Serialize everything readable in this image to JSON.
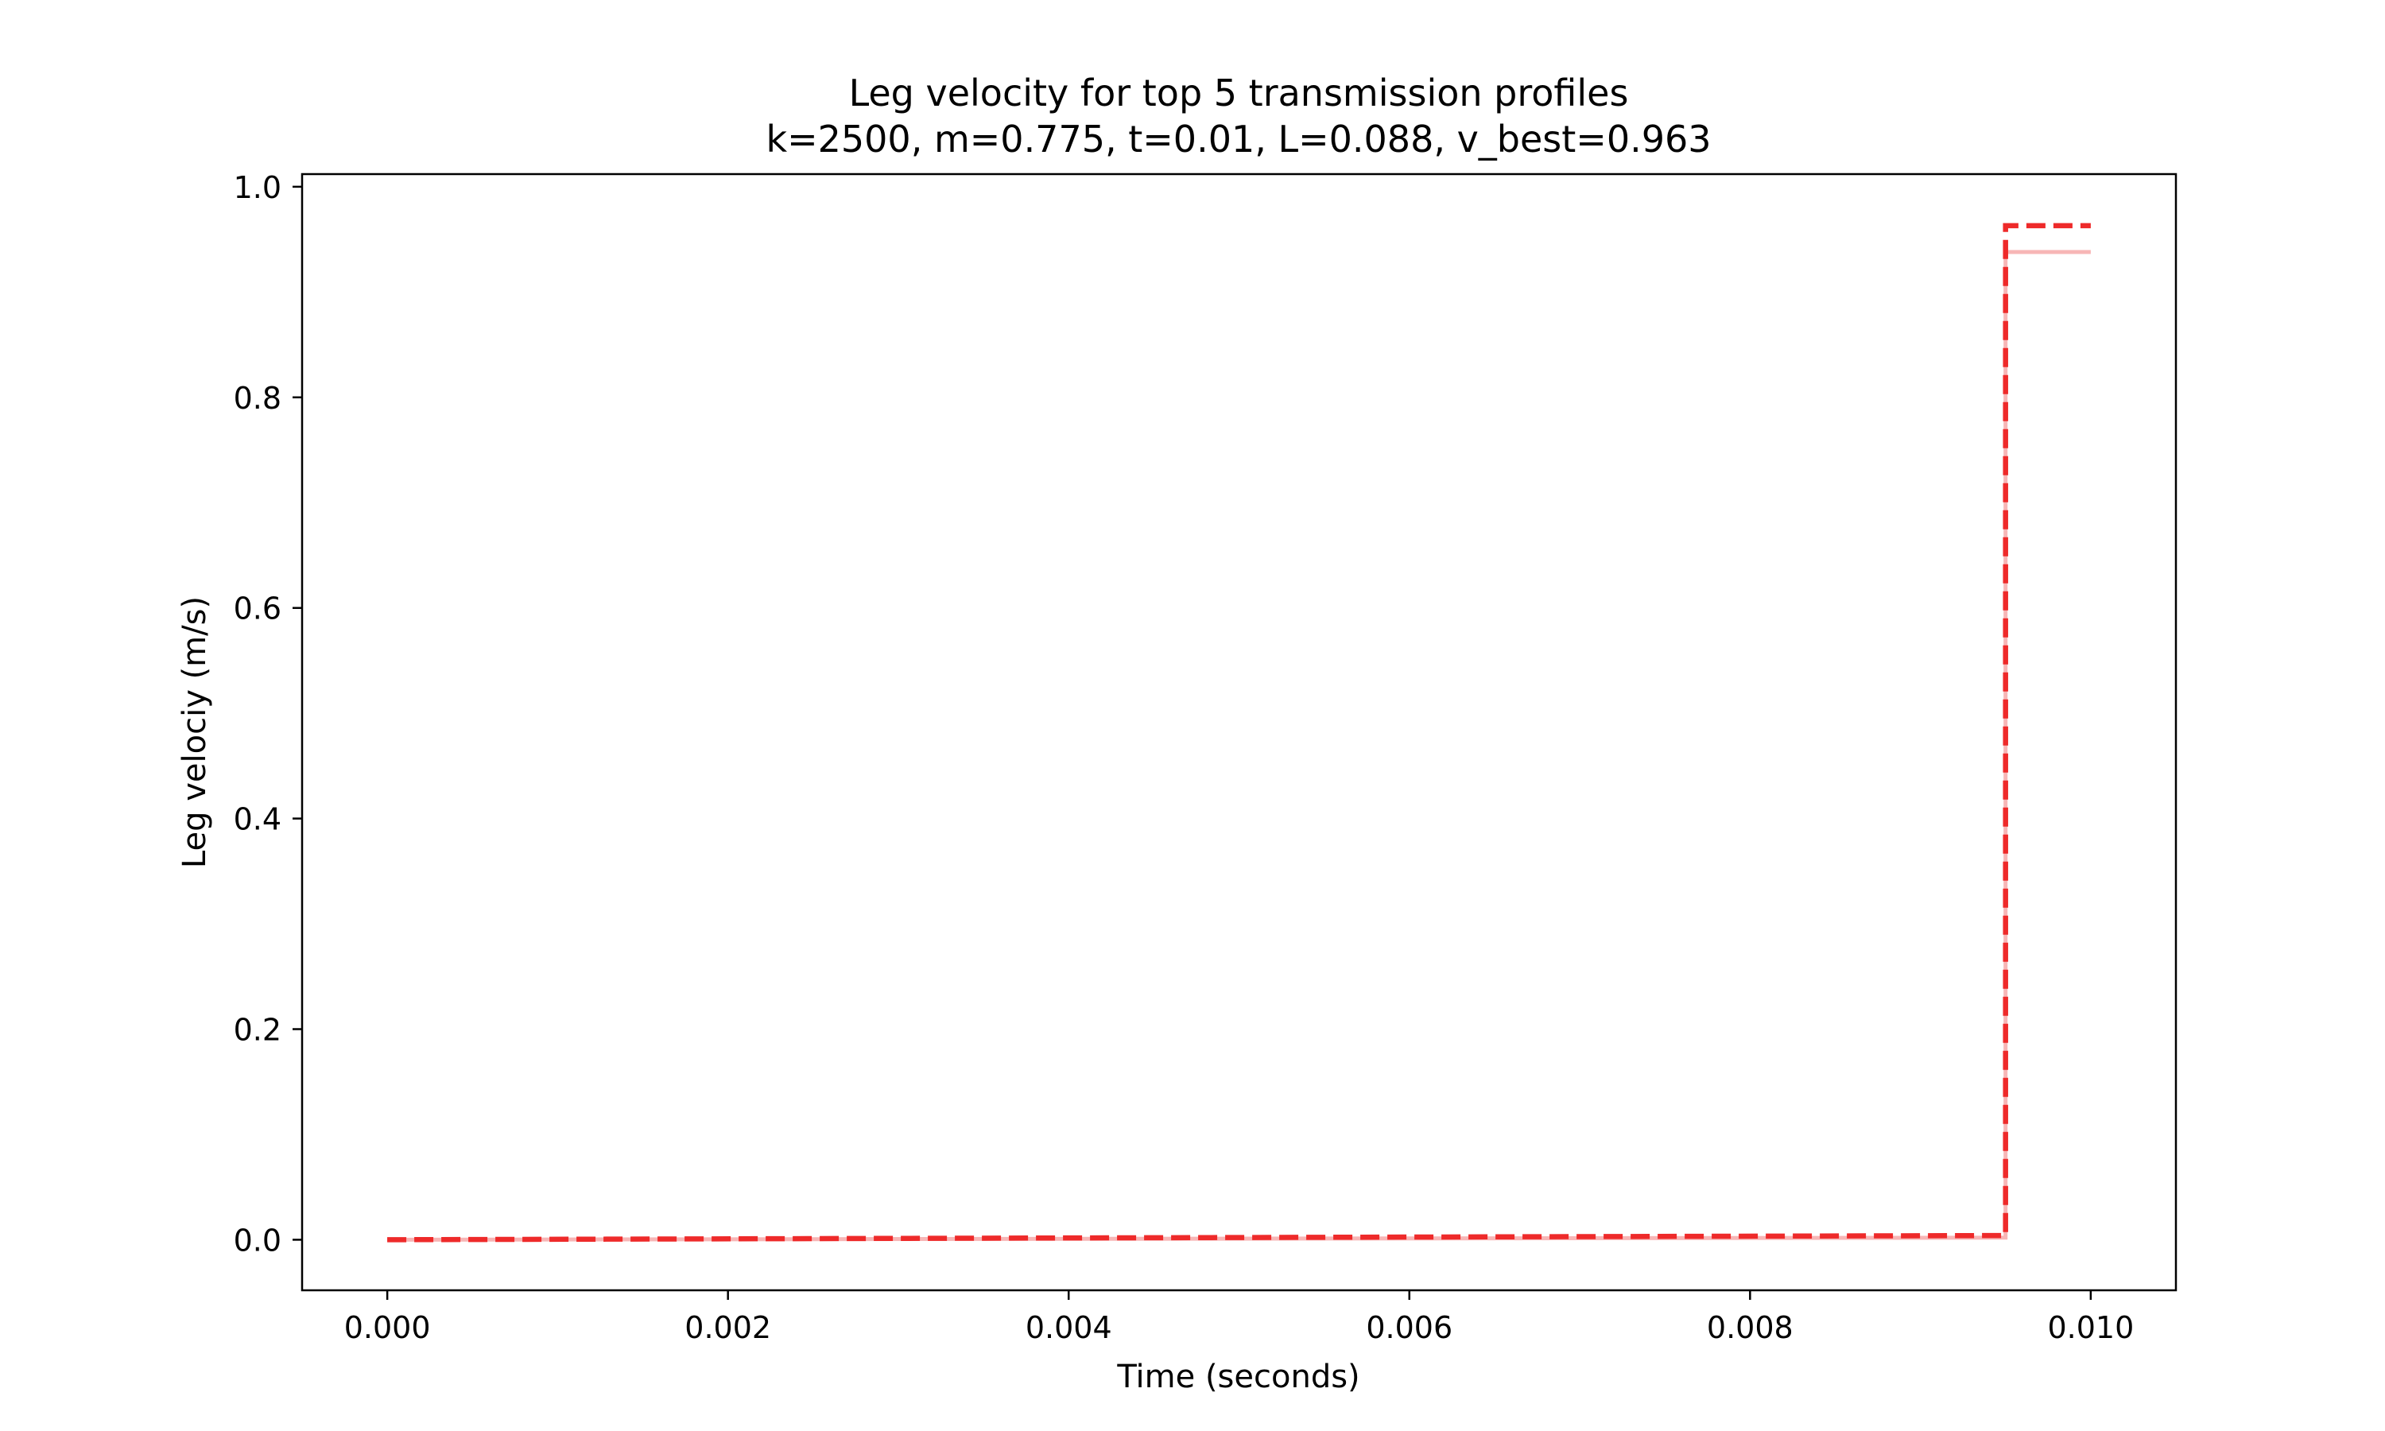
{
  "chart_data": {
    "type": "line",
    "title_line1": "Leg velocity for top 5 transmission profiles",
    "title_line2": "k=2500, m=0.775, t=0.01, L=0.088, v_best=0.963",
    "xlabel": "Time (seconds)",
    "ylabel": "Leg velociy (m/s)",
    "xlim": [
      -0.0005,
      0.0105
    ],
    "ylim": [
      -0.048,
      1.012
    ],
    "xticks": [
      0.0,
      0.002,
      0.004,
      0.006,
      0.008,
      0.01
    ],
    "xtick_labels": [
      "0.000",
      "0.002",
      "0.004",
      "0.006",
      "0.008",
      "0.010"
    ],
    "yticks": [
      0.0,
      0.2,
      0.4,
      0.6,
      0.8,
      1.0
    ],
    "ytick_labels": [
      "0.0",
      "0.2",
      "0.4",
      "0.6",
      "0.8",
      "1.0"
    ],
    "grid": false,
    "legend": "none",
    "series": [
      {
        "style": "solid",
        "color": "#f7b6b6",
        "x": [
          0.0,
          0.0095,
          0.0095,
          0.01
        ],
        "y": [
          0.0,
          0.002,
          0.938,
          0.938
        ]
      },
      {
        "style": "dashed",
        "color": "#ee2a2a",
        "x": [
          0.0,
          0.0095,
          0.0095,
          0.01
        ],
        "y": [
          0.0,
          0.004,
          0.963,
          0.963
        ]
      }
    ]
  }
}
